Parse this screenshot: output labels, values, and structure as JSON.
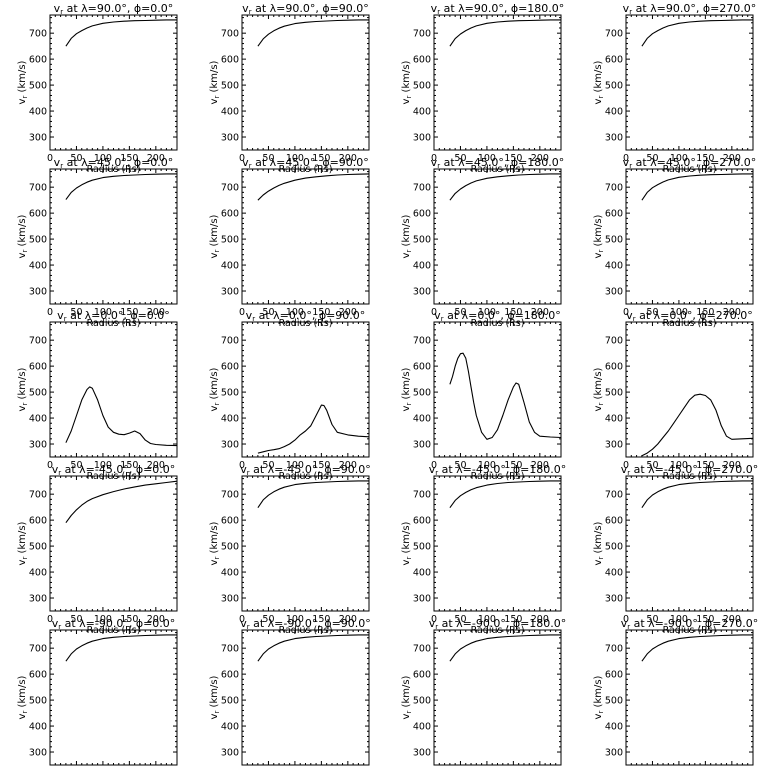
{
  "chart_data": {
    "type": "line",
    "layout": "5x4 panel grid",
    "xlabel": "Radius (Rs)",
    "ylabel": "v_r (km/s)",
    "ylabel_main": "v",
    "ylabel_sub": "r",
    "ylabel_unit": " (km/s)",
    "title_prefix": "v",
    "title_sub": "r",
    "title_mid1": " at ",
    "lambda_symbol": "λ",
    "phi_symbol": "ϕ",
    "degree": "°",
    "xlim": [
      0,
      240
    ],
    "ylim": [
      250,
      770
    ],
    "xticks": [
      0,
      50,
      100,
      150,
      200
    ],
    "yticks": [
      300,
      400,
      500,
      600,
      700
    ],
    "grid": false,
    "panels": [
      {
        "lambda": "90.0",
        "phi": "0.0",
        "x": [
          30,
          40,
          50,
          60,
          70,
          80,
          100,
          120,
          140,
          160,
          180,
          200,
          220,
          240
        ],
        "y": [
          650,
          680,
          698,
          710,
          720,
          728,
          738,
          743,
          746,
          748,
          749,
          750,
          751,
          751
        ]
      },
      {
        "lambda": "90.0",
        "phi": "90.0",
        "x": [
          30,
          40,
          50,
          60,
          70,
          80,
          100,
          120,
          140,
          160,
          180,
          200,
          220,
          240
        ],
        "y": [
          650,
          678,
          696,
          709,
          719,
          727,
          737,
          742,
          745,
          747,
          749,
          750,
          751,
          751
        ]
      },
      {
        "lambda": "90.0",
        "phi": "180.0",
        "x": [
          30,
          40,
          50,
          60,
          70,
          80,
          100,
          120,
          140,
          160,
          180,
          200,
          220,
          240
        ],
        "y": [
          650,
          679,
          697,
          710,
          720,
          728,
          738,
          743,
          746,
          748,
          749,
          750,
          751,
          751
        ]
      },
      {
        "lambda": "90.0",
        "phi": "270.0",
        "x": [
          30,
          40,
          50,
          60,
          70,
          80,
          100,
          120,
          140,
          160,
          180,
          200,
          220,
          240
        ],
        "y": [
          650,
          680,
          698,
          710,
          720,
          728,
          738,
          743,
          746,
          748,
          749,
          750,
          751,
          751
        ]
      },
      {
        "lambda": "45.0",
        "phi": "0.0",
        "x": [
          30,
          40,
          50,
          60,
          70,
          80,
          100,
          120,
          140,
          160,
          180,
          200,
          220,
          240
        ],
        "y": [
          652,
          680,
          697,
          709,
          719,
          727,
          737,
          742,
          745,
          747,
          749,
          750,
          751,
          751
        ]
      },
      {
        "lambda": "45.0",
        "phi": "90.0",
        "x": [
          30,
          40,
          50,
          60,
          70,
          80,
          100,
          120,
          140,
          160,
          180,
          200,
          220,
          240
        ],
        "y": [
          650,
          670,
          685,
          697,
          707,
          715,
          727,
          735,
          740,
          744,
          747,
          749,
          750,
          751
        ]
      },
      {
        "lambda": "45.0",
        "phi": "180.0",
        "x": [
          30,
          40,
          50,
          60,
          70,
          80,
          100,
          120,
          140,
          160,
          180,
          200,
          220,
          240
        ],
        "y": [
          650,
          676,
          693,
          706,
          716,
          724,
          734,
          740,
          744,
          747,
          749,
          750,
          751,
          751
        ]
      },
      {
        "lambda": "45.0",
        "phi": "270.0",
        "x": [
          30,
          40,
          50,
          60,
          70,
          80,
          100,
          120,
          140,
          160,
          180,
          200,
          220,
          240
        ],
        "y": [
          650,
          680,
          698,
          710,
          720,
          728,
          738,
          743,
          746,
          748,
          749,
          750,
          751,
          751
        ]
      },
      {
        "lambda": "0.0",
        "phi": "0.0",
        "x": [
          30,
          40,
          50,
          60,
          70,
          75,
          80,
          90,
          100,
          110,
          120,
          130,
          140,
          150,
          160,
          170,
          180,
          190,
          200,
          220,
          240
        ],
        "y": [
          305,
          350,
          410,
          470,
          510,
          520,
          515,
          470,
          410,
          365,
          345,
          338,
          336,
          342,
          350,
          340,
          315,
          302,
          298,
          295,
          294
        ]
      },
      {
        "lambda": "0.0",
        "phi": "90.0",
        "x": [
          30,
          40,
          50,
          60,
          70,
          80,
          90,
          100,
          110,
          120,
          130,
          140,
          150,
          155,
          160,
          170,
          180,
          200,
          220,
          240
        ],
        "y": [
          265,
          270,
          275,
          278,
          282,
          290,
          300,
          315,
          335,
          350,
          370,
          410,
          450,
          448,
          430,
          375,
          345,
          335,
          330,
          328
        ]
      },
      {
        "lambda": "0.0",
        "phi": "180.0",
        "x": [
          30,
          35,
          40,
          45,
          50,
          55,
          60,
          65,
          70,
          75,
          80,
          90,
          100,
          110,
          120,
          130,
          140,
          150,
          155,
          160,
          170,
          180,
          190,
          200,
          220,
          240
        ],
        "y": [
          530,
          560,
          600,
          630,
          648,
          650,
          630,
          580,
          520,
          460,
          410,
          345,
          318,
          325,
          355,
          410,
          470,
          520,
          535,
          530,
          460,
          385,
          345,
          330,
          327,
          325
        ]
      },
      {
        "lambda": "0.0",
        "phi": "270.0",
        "x": [
          30,
          40,
          50,
          60,
          70,
          80,
          90,
          100,
          110,
          120,
          130,
          140,
          150,
          160,
          170,
          180,
          190,
          200,
          220,
          240
        ],
        "y": [
          255,
          265,
          280,
          300,
          325,
          350,
          380,
          410,
          440,
          470,
          488,
          492,
          487,
          470,
          430,
          370,
          330,
          318,
          320,
          322
        ]
      },
      {
        "lambda": "-45.0",
        "phi": "0.0",
        "x": [
          30,
          40,
          50,
          60,
          70,
          80,
          100,
          120,
          140,
          160,
          180,
          200,
          220,
          240
        ],
        "y": [
          590,
          618,
          640,
          658,
          672,
          683,
          698,
          710,
          720,
          728,
          735,
          740,
          745,
          750
        ]
      },
      {
        "lambda": "-45.0",
        "phi": "90.0",
        "x": [
          30,
          40,
          50,
          60,
          70,
          80,
          100,
          120,
          140,
          160,
          180,
          200,
          220,
          240
        ],
        "y": [
          648,
          678,
          696,
          709,
          719,
          727,
          737,
          742,
          745,
          747,
          749,
          750,
          751,
          751
        ]
      },
      {
        "lambda": "-45.0",
        "phi": "180.0",
        "x": [
          30,
          40,
          50,
          60,
          70,
          80,
          100,
          120,
          140,
          160,
          180,
          200,
          220,
          240
        ],
        "y": [
          648,
          676,
          694,
          707,
          717,
          725,
          735,
          741,
          745,
          747,
          749,
          750,
          751,
          751
        ]
      },
      {
        "lambda": "-45.0",
        "phi": "270.0",
        "x": [
          30,
          40,
          50,
          60,
          70,
          80,
          100,
          120,
          140,
          160,
          180,
          200,
          220,
          240
        ],
        "y": [
          648,
          678,
          697,
          709,
          719,
          727,
          737,
          742,
          745,
          747,
          749,
          750,
          751,
          751
        ]
      },
      {
        "lambda": "-90.0",
        "phi": "0.0",
        "x": [
          30,
          40,
          50,
          60,
          70,
          80,
          100,
          120,
          140,
          160,
          180,
          200,
          220,
          240
        ],
        "y": [
          650,
          678,
          697,
          709,
          719,
          727,
          737,
          742,
          745,
          747,
          749,
          750,
          751,
          751
        ]
      },
      {
        "lambda": "-90.0",
        "phi": "90.0",
        "x": [
          30,
          40,
          50,
          60,
          70,
          80,
          100,
          120,
          140,
          160,
          180,
          200,
          220,
          240
        ],
        "y": [
          650,
          678,
          697,
          709,
          719,
          727,
          737,
          742,
          745,
          747,
          749,
          750,
          751,
          751
        ]
      },
      {
        "lambda": "-90.0",
        "phi": "180.0",
        "x": [
          30,
          40,
          50,
          60,
          70,
          80,
          100,
          120,
          140,
          160,
          180,
          200,
          220,
          240
        ],
        "y": [
          650,
          678,
          697,
          709,
          719,
          727,
          737,
          742,
          745,
          747,
          749,
          750,
          751,
          751
        ]
      },
      {
        "lambda": "-90.0",
        "phi": "270.0",
        "x": [
          30,
          40,
          50,
          60,
          70,
          80,
          100,
          120,
          140,
          160,
          180,
          200,
          220,
          240
        ],
        "y": [
          650,
          678,
          697,
          709,
          719,
          727,
          737,
          742,
          745,
          747,
          749,
          750,
          751,
          751
        ]
      }
    ]
  }
}
